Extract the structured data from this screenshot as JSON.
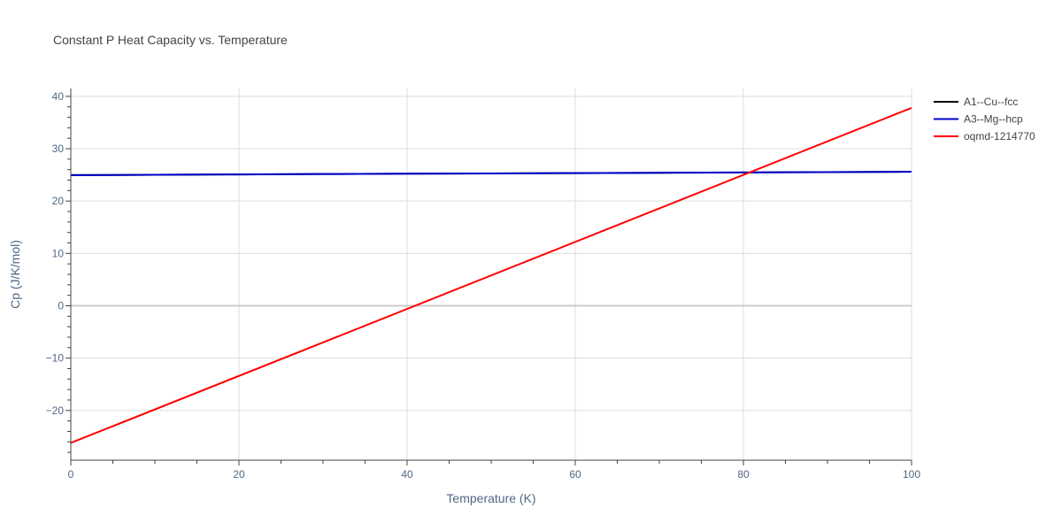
{
  "chart_data": {
    "type": "line",
    "title": "Constant P Heat Capacity vs. Temperature",
    "xlabel": "Temperature (K)",
    "ylabel": "Cp (J/K/mol)",
    "xlim": [
      0,
      100
    ],
    "ylim": [
      -29.5,
      41.5
    ],
    "x_ticks": [
      0,
      20,
      40,
      60,
      80,
      100
    ],
    "x_tick_labels": [
      "0",
      "20",
      "40",
      "60",
      "80",
      "100"
    ],
    "y_ticks": [
      -20,
      -10,
      0,
      10,
      20,
      30,
      40
    ],
    "y_tick_labels": [
      "−20",
      "−10",
      "0",
      "10",
      "20",
      "30",
      "40"
    ],
    "grid": true,
    "legend_position": "top-right outside",
    "series": [
      {
        "name": "A1--Cu--fcc",
        "color": "#000000",
        "x": [
          0,
          10,
          20,
          30,
          40,
          50,
          60,
          70,
          80,
          90,
          100
        ],
        "y": [
          24.95,
          25.02,
          25.09,
          25.16,
          25.22,
          25.28,
          25.34,
          25.4,
          25.46,
          25.53,
          25.6
        ]
      },
      {
        "name": "A3--Mg--hcp",
        "color": "#0000cc",
        "x": [
          0,
          10,
          20,
          30,
          40,
          50,
          60,
          70,
          80,
          90,
          100
        ],
        "y": [
          24.95,
          25.02,
          25.09,
          25.16,
          25.22,
          25.28,
          25.34,
          25.4,
          25.46,
          25.53,
          25.6
        ]
      },
      {
        "name": "oqmd-1214770",
        "color": "#ff0000",
        "x": [
          0,
          100
        ],
        "y": [
          -26.2,
          37.8
        ]
      }
    ]
  }
}
